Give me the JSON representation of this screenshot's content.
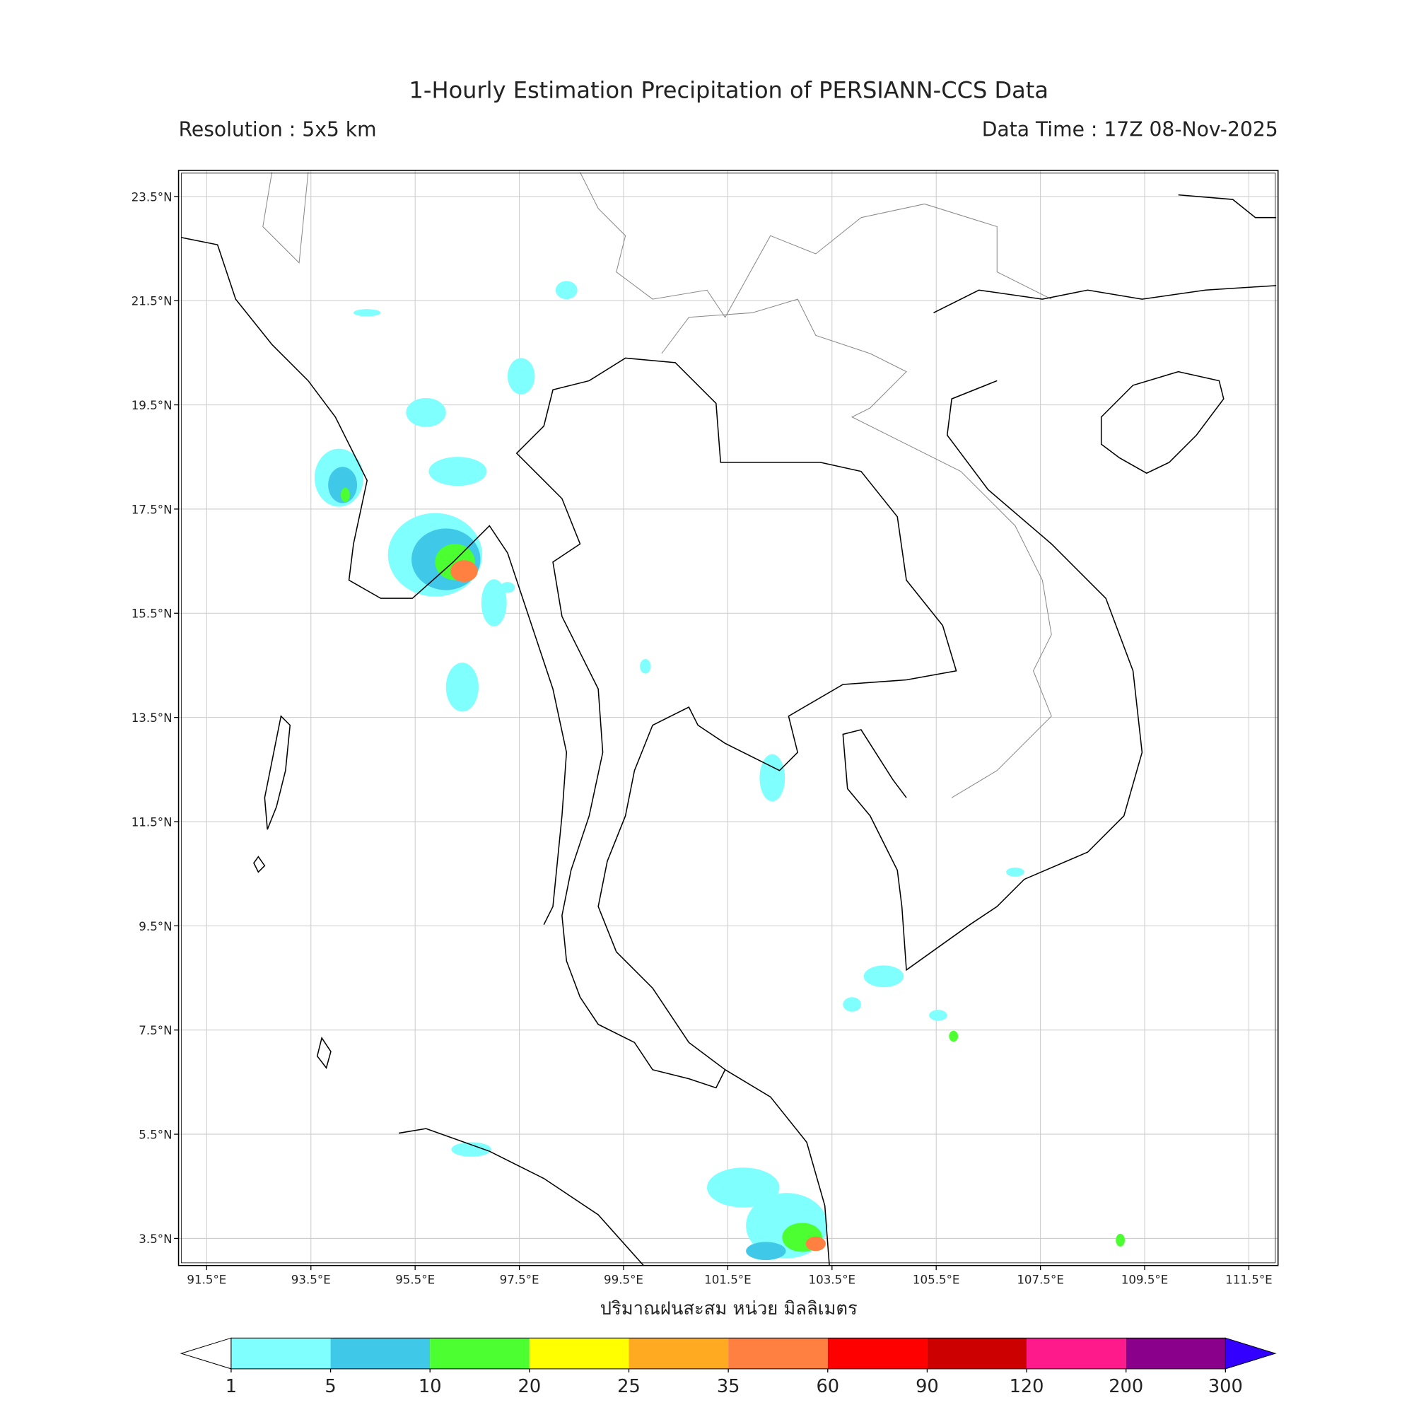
{
  "map": {
    "title": "1-Hourly Estimation Precipitation of PERSIANN-CCS Data",
    "resolution": "Resolution : 5x5 km",
    "data_time": "Data Time : 17Z 08-Nov-2025",
    "xlabel": "ปริมาณฝนสะสม หน่วย มิลลิเมตร",
    "lonlim": [
      90.96,
      112.06
    ],
    "latlim": [
      2.98,
      24.0
    ],
    "lonticks": [
      {
        "value": 91.5,
        "label": "91.5°E"
      },
      {
        "value": 93.5,
        "label": "93.5°E"
      },
      {
        "value": 95.5,
        "label": "95.5°E"
      },
      {
        "value": 97.5,
        "label": "97.5°E"
      },
      {
        "value": 99.5,
        "label": "99.5°E"
      },
      {
        "value": 101.5,
        "label": "101.5°E"
      },
      {
        "value": 103.5,
        "label": "103.5°E"
      },
      {
        "value": 105.5,
        "label": "105.5°E"
      },
      {
        "value": 107.5,
        "label": "107.5°E"
      },
      {
        "value": 109.5,
        "label": "109.5°E"
      },
      {
        "value": 111.5,
        "label": "111.5°E"
      }
    ],
    "latticks": [
      {
        "value": 3.5,
        "label": "3.5°N"
      },
      {
        "value": 5.5,
        "label": "5.5°N"
      },
      {
        "value": 7.5,
        "label": "7.5°N"
      },
      {
        "value": 9.5,
        "label": "9.5°N"
      },
      {
        "value": 11.5,
        "label": "11.5°N"
      },
      {
        "value": 13.5,
        "label": "13.5°N"
      },
      {
        "value": 15.5,
        "label": "15.5°N"
      },
      {
        "value": 17.5,
        "label": "17.5°N"
      },
      {
        "value": 19.5,
        "label": "19.5°N"
      },
      {
        "value": 21.5,
        "label": "21.5°N"
      },
      {
        "value": 23.5,
        "label": "23.5°N"
      }
    ],
    "grid": true,
    "colorbar": {
      "levels": [
        1,
        5,
        10,
        20,
        25,
        35,
        60,
        90,
        120,
        200,
        300
      ],
      "colors": [
        "#80ffff",
        "#40c8e8",
        "#4cff30",
        "#ffff00",
        "#ffaa20",
        "#ff8040",
        "#ff0000",
        "#cc0000",
        "#ff1a8c",
        "#8b008b"
      ],
      "under_color": "#ffffff",
      "over_color": "#3300ff"
    }
  }
}
